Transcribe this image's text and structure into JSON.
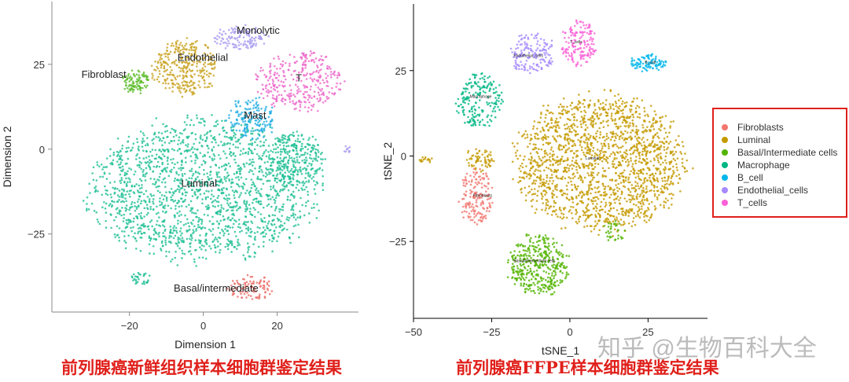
{
  "chart_data": [
    {
      "type": "scatter",
      "xlabel": "Dimension 1",
      "ylabel": "Dimension 2",
      "xlim": [
        -41,
        42
      ],
      "ylim": [
        -48,
        43.5
      ],
      "xticks": [
        -20,
        0,
        20
      ],
      "yticks": [
        25,
        0,
        -25
      ],
      "grid": false,
      "caption": "前列腺癌新鲜组织样本细胞群鉴定结果",
      "clusters": [
        {
          "label": "Luminal",
          "color": "#1fbf95",
          "parts": [
            [
              0,
              -12,
              34,
              23,
              0.55
            ],
            [
              -17,
              -38,
              3,
              2,
              0.01
            ],
            [
              25,
              -3,
              9,
              9,
              0.08
            ]
          ],
          "label_at": [
            -6,
            -11
          ]
        },
        {
          "label": "Endothelial",
          "color": "#c9a221",
          "parts": [
            [
              -5,
              24,
              10,
              9,
              0.1
            ]
          ],
          "label_at": [
            -7,
            26
          ]
        },
        {
          "label": "Fibroblast",
          "color": "#5cbb2a",
          "parts": [
            [
              -18,
              20,
              4,
              4,
              0.03
            ]
          ],
          "label_at": [
            -33,
            21
          ]
        },
        {
          "label": "Monolytic",
          "color": "#a79bf0",
          "parts": [
            [
              10,
              33,
              8,
              4,
              0.04
            ],
            [
              39,
              0,
              1,
              1.5,
              0.003
            ]
          ],
          "label_at": [
            9,
            34
          ]
        },
        {
          "label": "T",
          "color": "#ec66c9",
          "parts": [
            [
              26,
              20,
              13,
              10,
              0.1
            ]
          ],
          "label_at": [
            25,
            20
          ]
        },
        {
          "label": "Mast",
          "color": "#22aee3",
          "parts": [
            [
              13,
              9,
              7,
              7,
              0.05
            ]
          ],
          "label_at": [
            11,
            9
          ]
        },
        {
          "label": "Basal/intermediate",
          "color": "#eb6e68",
          "parts": [
            [
              13,
              -41,
              7,
              4,
              0.03
            ]
          ],
          "label_at": [
            -8,
            -42
          ]
        }
      ]
    },
    {
      "type": "scatter",
      "xlabel": "tSNE_1",
      "ylabel": "tSNE_2",
      "xlim": [
        -50,
        44
      ],
      "ylim": [
        -47.5,
        44.5
      ],
      "xticks": [
        -50,
        -25,
        0,
        25
      ],
      "yticks": [
        25,
        0,
        -25
      ],
      "grid": false,
      "caption": "前列腺癌FFPE样本细胞群鉴定结果",
      "clusters": [
        {
          "label": "Fibroblasts",
          "color": "#f3766e",
          "parts": [
            [
              -30,
              -12,
              6,
              9,
              0.05
            ]
          ],
          "label_at": [
            -31,
            -12
          ]
        },
        {
          "label": "Luminal",
          "color": "#c49a00",
          "parts": [
            [
              10,
              -2,
              30,
              22,
              0.55
            ],
            [
              -29,
              -1,
              5,
              4,
              0.02
            ],
            [
              -46,
              -1,
              3,
              1,
              0.005
            ]
          ],
          "label_at": [
            5,
            -1
          ]
        },
        {
          "label": "Basal/Intermediate cells",
          "color": "#53b400",
          "parts": [
            [
              -10,
              -32,
              11,
              10,
              0.12
            ],
            [
              14,
              -22,
              4,
              4,
              0.01
            ]
          ],
          "label_at": [
            -18,
            -31
          ]
        },
        {
          "label": "Macrophage",
          "color": "#00b684",
          "parts": [
            [
              -29,
              16,
              8,
              9,
              0.06
            ]
          ],
          "label_at": [
            -32,
            17
          ]
        },
        {
          "label": "B_cell",
          "color": "#00b6eb",
          "parts": [
            [
              25,
              27,
              7,
              3,
              0.03
            ]
          ],
          "label_at": [
            24,
            27
          ]
        },
        {
          "label": "Endothelial_cells",
          "color": "#a58aff",
          "parts": [
            [
              -12,
              30,
              8,
              7,
              0.05
            ]
          ],
          "label_at": [
            -18,
            29
          ]
        },
        {
          "label": "T_cells",
          "color": "#fb61d7",
          "parts": [
            [
              3,
              33,
              6,
              8,
              0.05
            ]
          ],
          "label_at": [
            0,
            33
          ]
        }
      ]
    }
  ],
  "watermark": "知乎 @生物百科大全"
}
